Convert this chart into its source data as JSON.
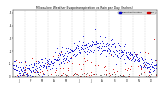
{
  "title": "Milwaukee Weather Evapotranspiration vs Rain per Day (Inches)",
  "legend_blue": "Evapotranspiration",
  "legend_red": "Rain",
  "background_color": "#ffffff",
  "blue_color": "#0000cc",
  "red_color": "#cc0000",
  "black_color": "#000000",
  "gray_color": "#aaaaaa",
  "ylim": [
    0.0,
    0.52
  ],
  "n_days": 365,
  "seed": 42,
  "figsize": [
    1.6,
    0.87
  ],
  "dpi": 100
}
